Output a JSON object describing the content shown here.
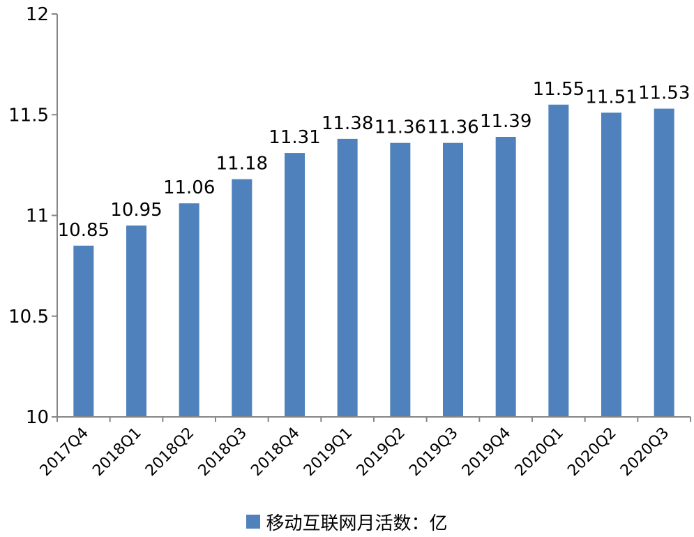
{
  "chart_data": {
    "type": "bar",
    "categories": [
      "2017Q4",
      "2018Q1",
      "2018Q2",
      "2018Q3",
      "2018Q4",
      "2019Q1",
      "2019Q2",
      "2019Q3",
      "2019Q4",
      "2020Q1",
      "2020Q2",
      "2020Q3"
    ],
    "series": [
      {
        "name": "移动互联网月活数：亿",
        "values": [
          10.85,
          10.95,
          11.06,
          11.18,
          11.31,
          11.38,
          11.36,
          11.36,
          11.39,
          11.55,
          11.51,
          11.53
        ],
        "labels": [
          "10.85",
          "10.95",
          "11.06",
          "11.18",
          "11.31",
          "11.38",
          "11.36",
          "11.36",
          "11.39",
          "11.55",
          "11.51",
          "11.53"
        ]
      }
    ],
    "ylim": [
      10,
      12
    ],
    "yticks": [
      10,
      10.5,
      11,
      11.5,
      12
    ],
    "ytick_labels": [
      "10",
      "10.5",
      "11",
      "11.5",
      "12"
    ],
    "grid": false,
    "legend_position": "bottom",
    "colors": {
      "bar": "#4f81bd",
      "axis": "#868686"
    }
  }
}
